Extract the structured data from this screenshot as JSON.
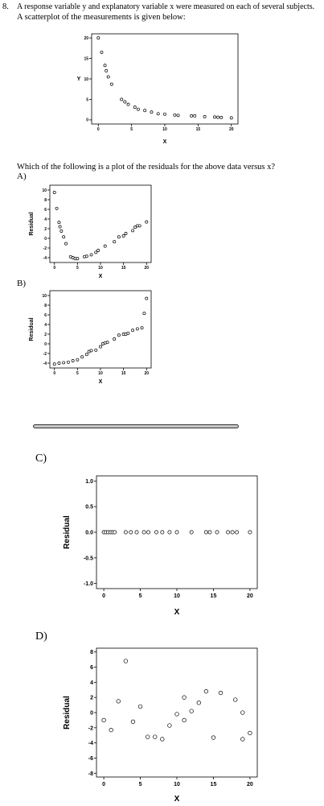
{
  "question": {
    "number": "8.",
    "line1": "A response variable y and explanatory variable x were measured on each of several subjects.",
    "line2": "A scatterplot of the measurements is given below:",
    "prompt": "Which of the following is a plot of the residuals for the above data versus x?"
  },
  "options": {
    "a": "A)",
    "b": "B)",
    "c": "C)",
    "d": "D)"
  },
  "chart_data": [
    {
      "id": "main",
      "type": "scatter",
      "xlabel": "X",
      "ylabel": "Y",
      "xlim": [
        -1,
        21
      ],
      "ylim": [
        -1,
        21
      ],
      "xticks": [
        0,
        5,
        10,
        15,
        20
      ],
      "yticks": [
        0,
        5,
        10,
        15,
        20
      ],
      "points": [
        [
          0,
          20
        ],
        [
          0.5,
          16.5
        ],
        [
          1,
          13.3
        ],
        [
          1.2,
          12
        ],
        [
          1.5,
          10.5
        ],
        [
          2,
          8.7
        ],
        [
          3.5,
          5
        ],
        [
          4,
          4.4
        ],
        [
          4.5,
          3.8
        ],
        [
          5.5,
          3.1
        ],
        [
          6,
          2.6
        ],
        [
          7,
          2.3
        ],
        [
          8,
          1.9
        ],
        [
          9,
          1.5
        ],
        [
          10,
          1.4
        ],
        [
          11.5,
          1.2
        ],
        [
          12,
          1.1
        ],
        [
          14,
          1
        ],
        [
          14.5,
          1
        ],
        [
          16,
          0.8
        ],
        [
          17.5,
          0.7
        ],
        [
          18,
          0.65
        ],
        [
          18.5,
          0.6
        ],
        [
          20,
          0.5
        ]
      ]
    },
    {
      "id": "a",
      "type": "scatter",
      "xlabel": "X",
      "ylabel": "Residual",
      "xlim": [
        -1,
        21
      ],
      "ylim": [
        -5,
        11
      ],
      "xticks": [
        0,
        5,
        10,
        15,
        20
      ],
      "yticks": [
        -4,
        -2,
        0,
        2,
        4,
        6,
        8,
        10
      ],
      "points": [
        [
          0,
          9.5
        ],
        [
          0.5,
          6.2
        ],
        [
          1,
          3.3
        ],
        [
          1.2,
          2.4
        ],
        [
          1.5,
          1.5
        ],
        [
          2,
          0.3
        ],
        [
          2.5,
          -1.1
        ],
        [
          3.5,
          -3.8
        ],
        [
          4,
          -4
        ],
        [
          4.5,
          -4.2
        ],
        [
          5,
          -4.2
        ],
        [
          6.5,
          -3.8
        ],
        [
          7,
          -3.7
        ],
        [
          8,
          -3.4
        ],
        [
          9,
          -2.9
        ],
        [
          9.5,
          -2.5
        ],
        [
          11,
          -1.6
        ],
        [
          13,
          -0.7
        ],
        [
          14,
          0.3
        ],
        [
          15,
          0.5
        ],
        [
          15.5,
          1
        ],
        [
          17,
          1.6
        ],
        [
          17.5,
          2.3
        ],
        [
          18,
          2.6
        ],
        [
          18.5,
          2.6
        ],
        [
          20,
          3.4
        ]
      ]
    },
    {
      "id": "b",
      "type": "scatter",
      "xlabel": "X",
      "ylabel": "Residual",
      "xlim": [
        -1,
        21
      ],
      "ylim": [
        -5,
        11
      ],
      "xticks": [
        0,
        5,
        10,
        15,
        20
      ],
      "yticks": [
        -4,
        -2,
        0,
        2,
        4,
        6,
        8,
        10
      ],
      "points": [
        [
          0,
          -4.2
        ],
        [
          1,
          -4
        ],
        [
          2,
          -3.9
        ],
        [
          3,
          -3.8
        ],
        [
          4,
          -3.5
        ],
        [
          5,
          -3.3
        ],
        [
          6,
          -2.7
        ],
        [
          7,
          -2.2
        ],
        [
          7.5,
          -1.6
        ],
        [
          8,
          -1.4
        ],
        [
          9,
          -1.3
        ],
        [
          10,
          -0.6
        ],
        [
          10.5,
          0
        ],
        [
          11,
          0.2
        ],
        [
          11.5,
          0.3
        ],
        [
          13,
          1
        ],
        [
          14,
          1.8
        ],
        [
          15,
          2
        ],
        [
          15.5,
          2
        ],
        [
          16,
          2.2
        ],
        [
          17,
          2.8
        ],
        [
          18,
          3.1
        ],
        [
          19,
          3.3
        ],
        [
          19.5,
          6.3
        ],
        [
          20,
          9.4
        ]
      ]
    },
    {
      "id": "c",
      "type": "scatter",
      "xlabel": "X",
      "ylabel": "Residual",
      "xlim": [
        -1,
        21
      ],
      "ylim": [
        -1.1,
        1.1
      ],
      "xticks": [
        0,
        5,
        10,
        15,
        20
      ],
      "yticks": [
        "-1.0",
        "-0.5",
        "0.0",
        "0.5",
        "1.0"
      ],
      "points": [
        [
          0,
          0
        ],
        [
          0.3,
          0
        ],
        [
          0.6,
          0
        ],
        [
          0.9,
          0
        ],
        [
          1.2,
          0
        ],
        [
          1.5,
          0
        ],
        [
          3,
          0
        ],
        [
          3.7,
          0
        ],
        [
          4.5,
          0
        ],
        [
          5.5,
          0
        ],
        [
          6.1,
          0
        ],
        [
          7.2,
          0
        ],
        [
          8,
          0
        ],
        [
          9,
          0
        ],
        [
          10,
          0
        ],
        [
          12,
          0
        ],
        [
          14,
          0
        ],
        [
          14.5,
          0
        ],
        [
          15.5,
          0
        ],
        [
          17,
          0
        ],
        [
          17.6,
          0
        ],
        [
          18.2,
          0
        ],
        [
          20,
          0
        ]
      ]
    },
    {
      "id": "d",
      "type": "scatter",
      "xlabel": "X",
      "ylabel": "Residual",
      "xlim": [
        -1,
        21
      ],
      "ylim": [
        -8.5,
        8.5
      ],
      "xticks": [
        0,
        5,
        10,
        15,
        20
      ],
      "yticks": [
        -8,
        -6,
        -4,
        -2,
        0,
        2,
        4,
        6,
        8
      ],
      "points": [
        [
          0,
          -1
        ],
        [
          1,
          -2.3
        ],
        [
          2,
          1.5
        ],
        [
          3,
          6.8
        ],
        [
          4,
          -1.2
        ],
        [
          5,
          0.8
        ],
        [
          6,
          -3.2
        ],
        [
          7,
          -3.2
        ],
        [
          8,
          -3.5
        ],
        [
          9,
          -1.7
        ],
        [
          10,
          -0.2
        ],
        [
          11,
          -1
        ],
        [
          11,
          2
        ],
        [
          12,
          0.2
        ],
        [
          13,
          1.3
        ],
        [
          14,
          2.8
        ],
        [
          15,
          -3.3
        ],
        [
          16,
          2.6
        ],
        [
          18,
          1.7
        ],
        [
          19,
          0
        ],
        [
          19,
          -3.5
        ],
        [
          20,
          -2.7
        ]
      ]
    }
  ]
}
